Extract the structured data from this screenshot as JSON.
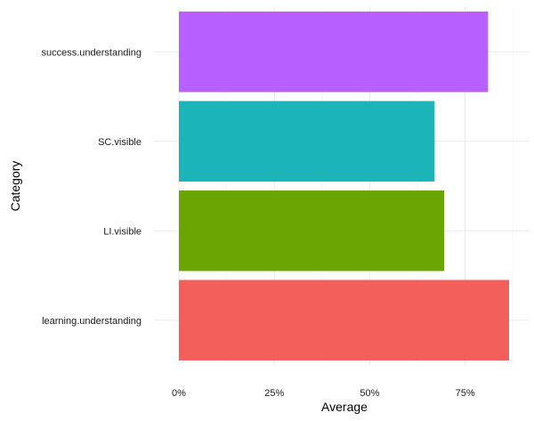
{
  "chart_data": {
    "type": "bar",
    "orientation": "horizontal",
    "categories": [
      "success.understanding",
      "SC.visible",
      "LI.visible",
      "learning.understanding"
    ],
    "values": [
      0.81,
      0.67,
      0.695,
      0.865
    ],
    "colors": [
      "#B75FFF",
      "#1AB4B9",
      "#6AA503",
      "#F35F5A"
    ],
    "xlabel": "Average",
    "ylabel": "Category",
    "xlim": [
      0,
      0.9
    ],
    "xticks": [
      {
        "value": 0,
        "label": "0%"
      },
      {
        "value": 0.25,
        "label": "25%"
      },
      {
        "value": 0.5,
        "label": "50%"
      },
      {
        "value": 0.75,
        "label": "75%"
      }
    ],
    "grid": true,
    "legend": "none"
  }
}
